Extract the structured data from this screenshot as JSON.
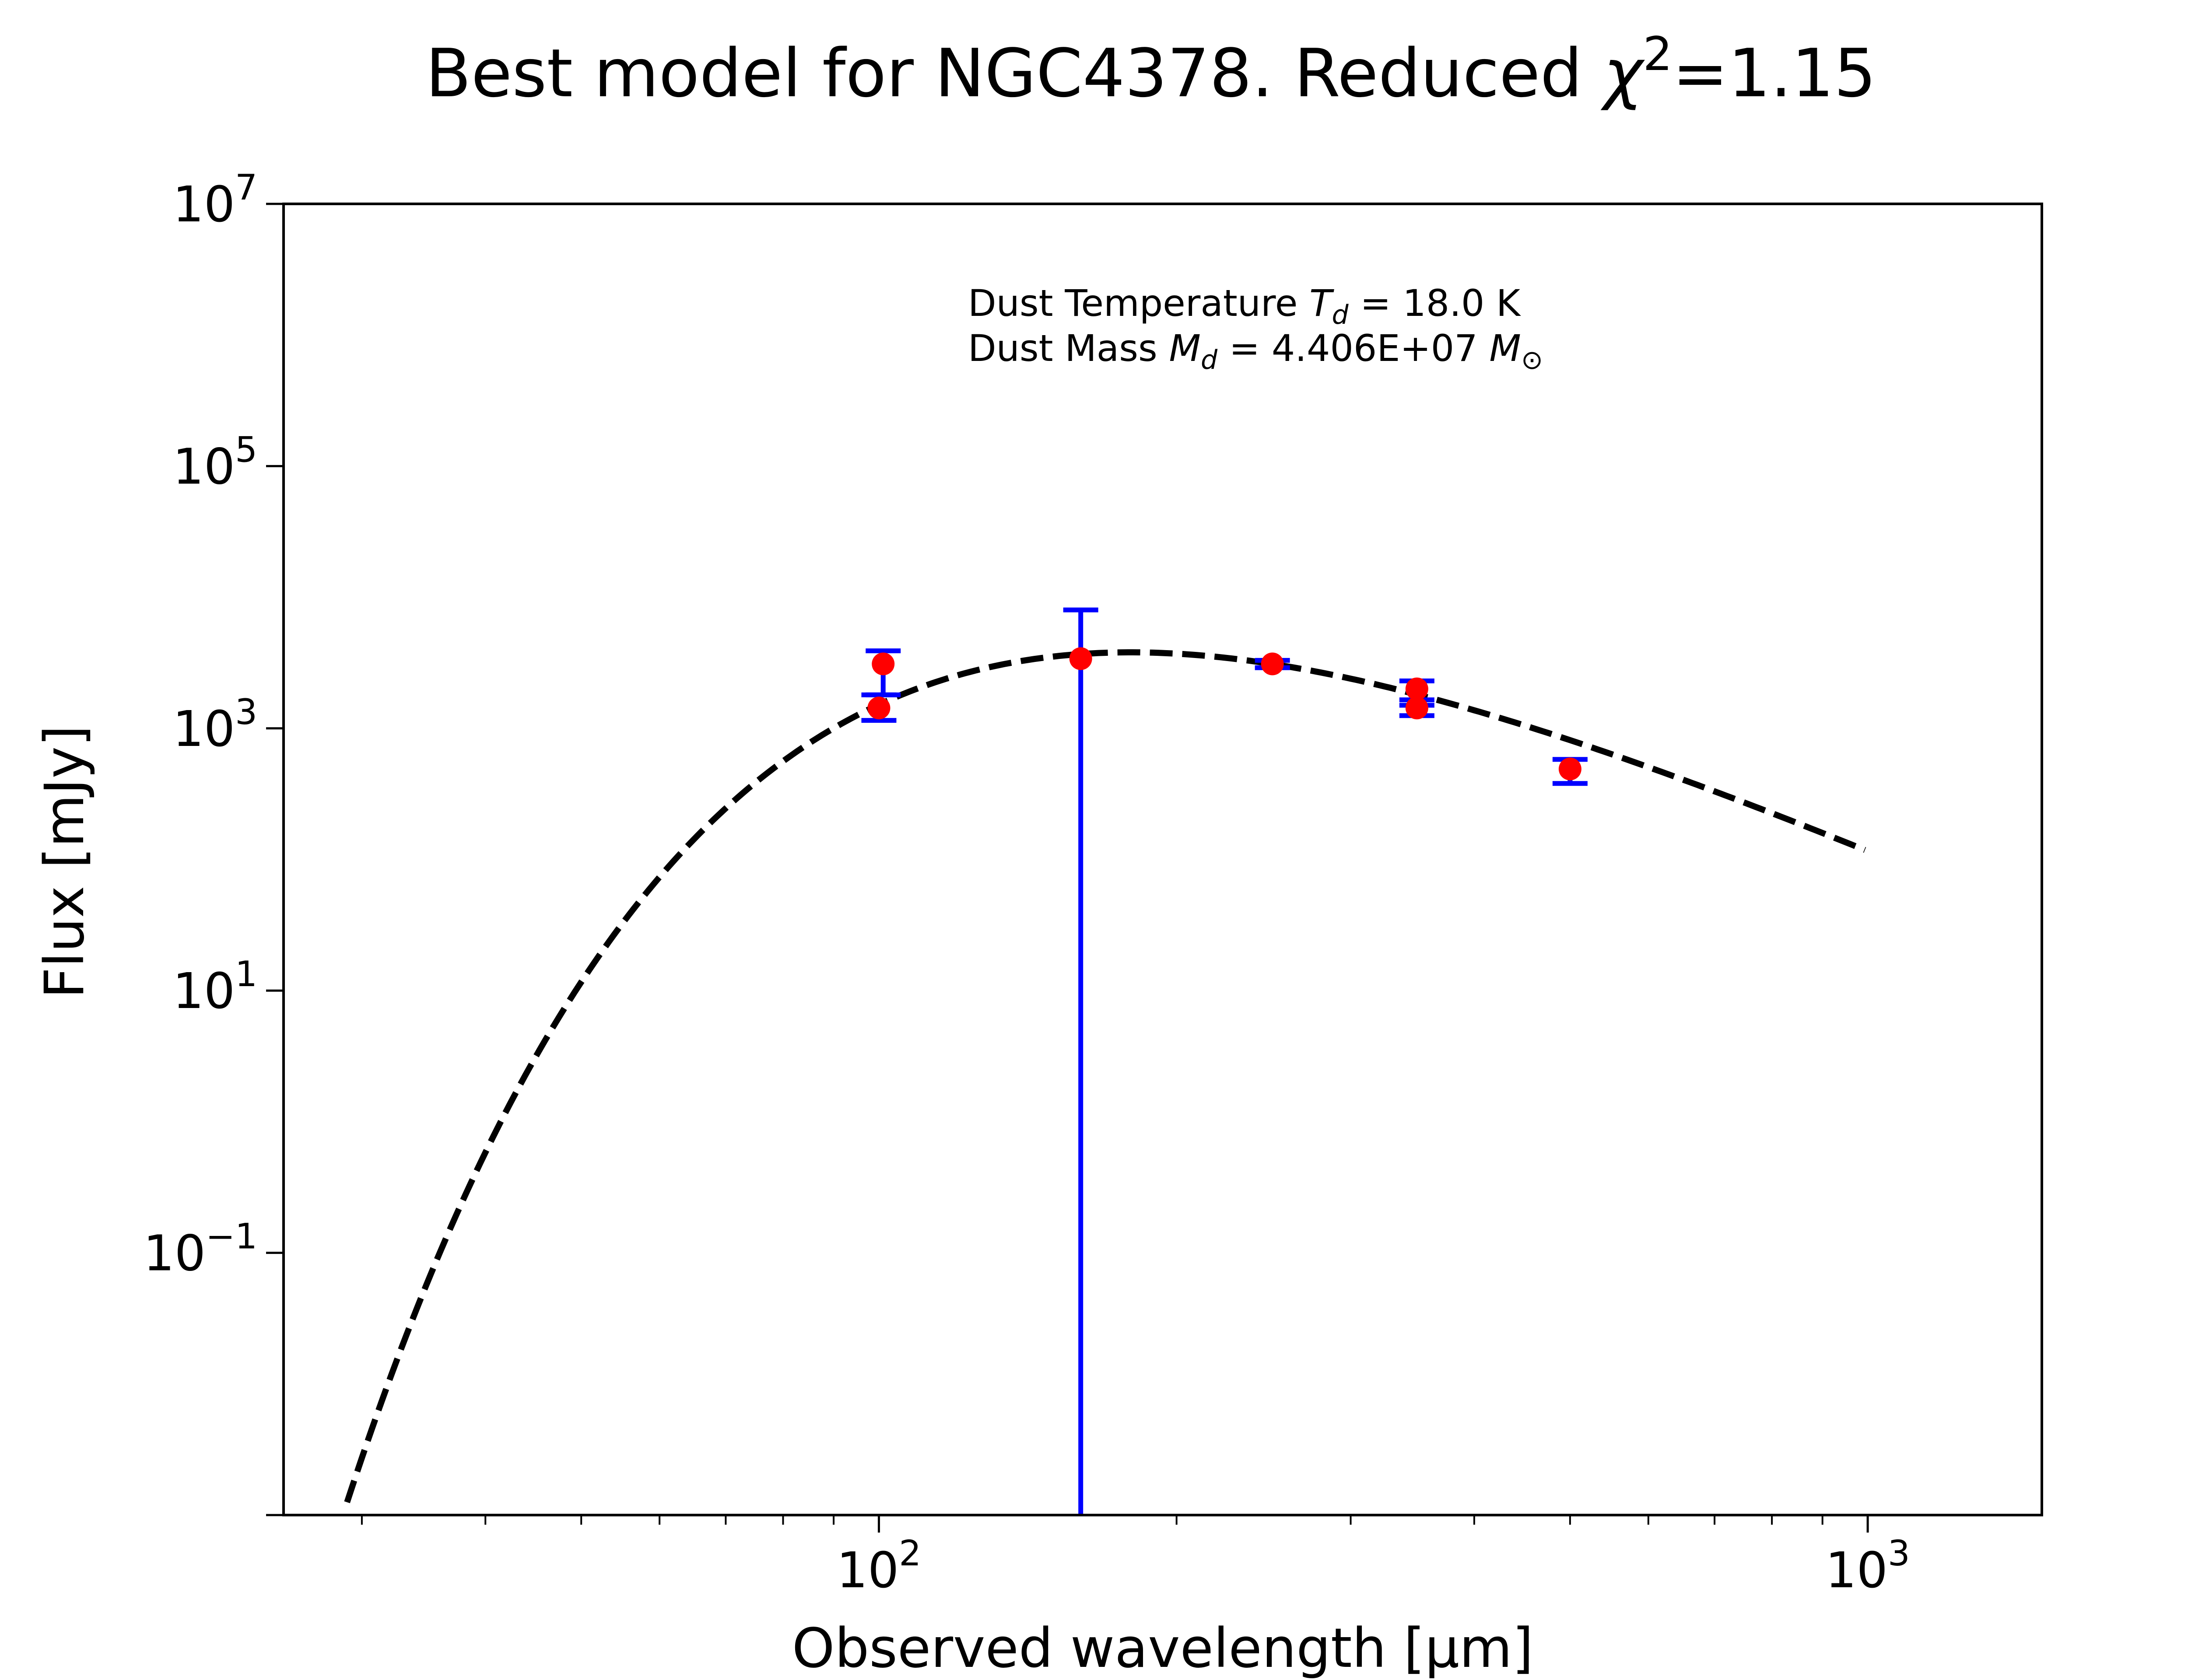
{
  "chart_data": {
    "type": "scatter",
    "title": "Best model for NGC4378. Reduced χ²=1.15",
    "title_parts": {
      "prefix": "Best model for NGC4378. Reduced ",
      "chi": "χ",
      "sup": "2",
      "suffix": "=1.15"
    },
    "xlabel": "Observed wavelength [μm]",
    "ylabel": "Flux [mJy]",
    "xscale": "log",
    "yscale": "log",
    "xlim": [
      25,
      1500
    ],
    "ylim": [
      0.001,
      10000000
    ],
    "grid": false,
    "x_ticks": [
      {
        "value": 100,
        "base": "10",
        "exp": "2"
      },
      {
        "value": 1000,
        "base": "10",
        "exp": "3"
      }
    ],
    "y_ticks": [
      {
        "value": 0.1,
        "base": "10",
        "exp": "−1"
      },
      {
        "value": 10,
        "base": "10",
        "exp": "1"
      },
      {
        "value": 1000,
        "base": "10",
        "exp": "3"
      },
      {
        "value": 100000,
        "base": "10",
        "exp": "5"
      },
      {
        "value": 10000000,
        "base": "10",
        "exp": "7"
      }
    ],
    "annotations": [
      {
        "label": "Dust Temperature ",
        "symbol": "T",
        "sub": "d",
        "value": " = 18.0 K"
      },
      {
        "label": "Dust Mass ",
        "symbol": "M",
        "sub": "d",
        "value": " = 4.406E+07 ",
        "unit": "M",
        "unit_sub": "⊙"
      }
    ],
    "series": [
      {
        "name": "observations",
        "marker_color": "#ff0000",
        "errorbar_color": "#0000ff",
        "points": [
          {
            "x": 100,
            "y": 1430,
            "err_low": 1150,
            "err_high": 1800
          },
          {
            "x": 101,
            "y": 3100,
            "err_low": 1800,
            "err_high": 3900
          },
          {
            "x": 160,
            "y": 3400,
            "err_low": 0.001,
            "err_high": 8000
          },
          {
            "x": 250,
            "y": 3100,
            "err_low": 2900,
            "err_high": 3300
          },
          {
            "x": 350,
            "y": 2000,
            "err_low": 1500,
            "err_high": 2300
          },
          {
            "x": 350,
            "y": 1430,
            "err_low": 1250,
            "err_high": 1650
          },
          {
            "x": 500,
            "y": 490,
            "err_low": 380,
            "err_high": 580
          }
        ]
      },
      {
        "name": "model",
        "line_color": "#000000",
        "line_style": "dashed",
        "T_dust": 18.0,
        "x_range": [
          28,
          1000
        ],
        "peak": {
          "x": 170,
          "y": 3800
        },
        "end": {
          "x": 1000,
          "y": 72
        }
      }
    ]
  }
}
